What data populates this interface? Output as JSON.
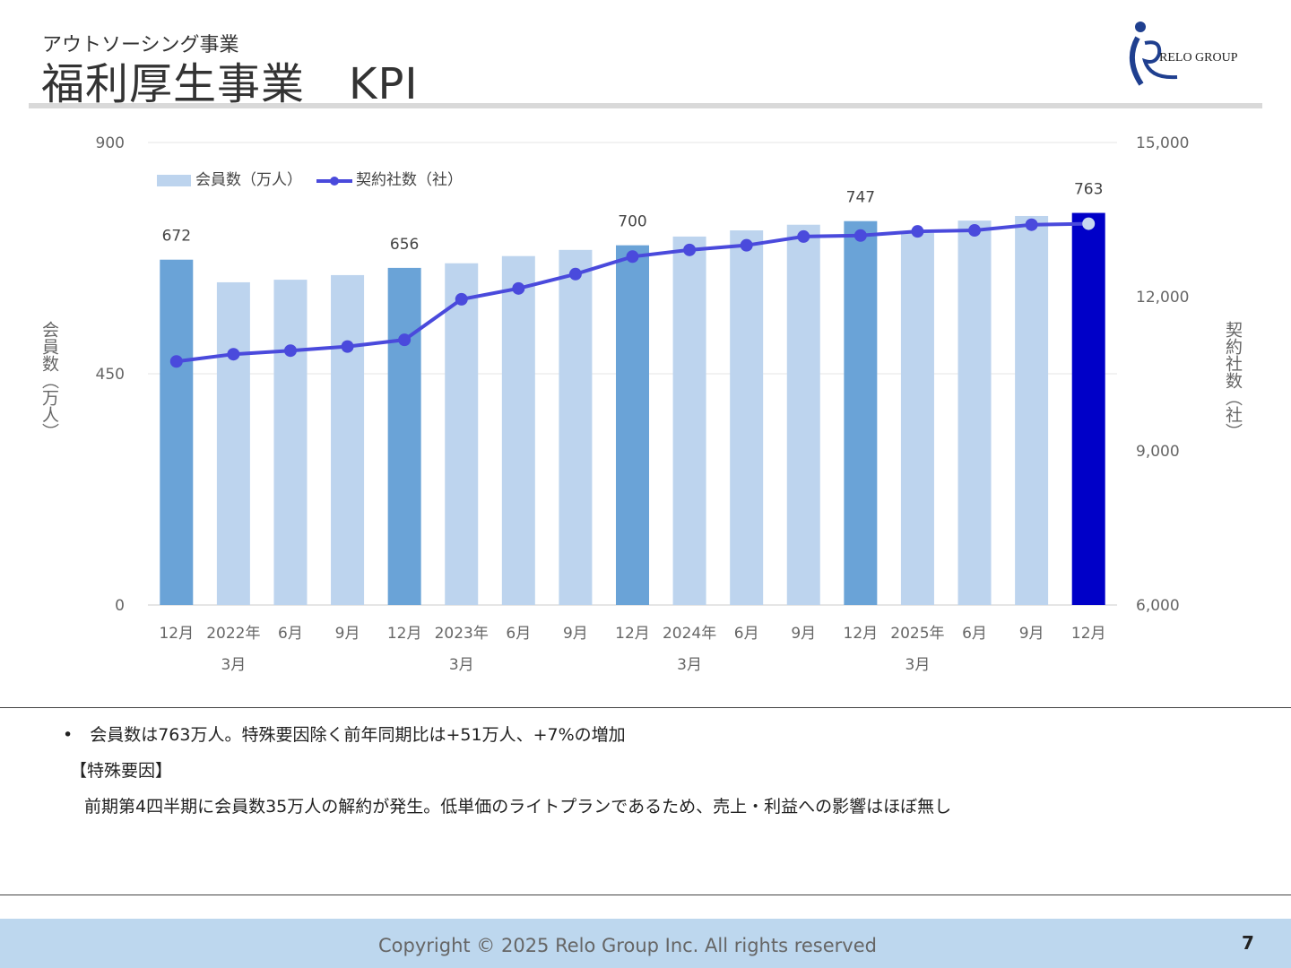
{
  "header": {
    "subtitle": "アウトソーシング事業",
    "title": "福利厚生事業　KPI",
    "logo_text": "RELO GROUP"
  },
  "chart_data": {
    "type": "bar+line",
    "categories": [
      "12月",
      "2022年\n3月",
      "6月",
      "9月",
      "12月",
      "2023年\n3月",
      "6月",
      "9月",
      "12月",
      "2024年\n3月",
      "6月",
      "9月",
      "12月",
      "2025年\n3月",
      "6月",
      "9月",
      "12月"
    ],
    "series": [
      {
        "name": "会員数（万人）",
        "type": "bar",
        "axis": "left",
        "values": [
          672,
          628,
          633,
          642,
          656,
          665,
          679,
          691,
          700,
          717,
          729,
          740,
          747,
          724,
          748,
          757,
          763
        ],
        "data_labels": {
          "0": "672",
          "4": "656",
          "8": "700",
          "12": "747",
          "16": "763"
        }
      },
      {
        "name": "契約社数（社）",
        "type": "line",
        "axis": "right",
        "values": [
          10740,
          10880,
          10950,
          11030,
          11160,
          11950,
          12160,
          12440,
          12780,
          12910,
          13000,
          13170,
          13190,
          13270,
          13290,
          13400,
          13420
        ]
      }
    ],
    "ylabel": "会員数（万人）",
    "y2label": "契約社数（社）",
    "ylim": [
      0,
      900
    ],
    "yticks": [
      "0",
      "450",
      "900"
    ],
    "y2lim": [
      6000,
      15000
    ],
    "y2ticks": [
      "6,000",
      "9,000",
      "12,000",
      "15,000"
    ],
    "legend": "top-left",
    "grid": true,
    "colors": {
      "bar": "#bdd4ee",
      "bar_q4": "#6aa3d7",
      "bar_latest": "#0000c8",
      "line": "#4a4adc",
      "latest_marker": "#c6d8f0"
    }
  },
  "notes": {
    "bullet": "会員数は763万人。特殊要因除く前年同期比は+51万人、+7%の増加",
    "heading": "【特殊要因】",
    "detail": "前期第4四半期に会員数35万人の解約が発生。低単価のライトプランであるため、売上・利益への影響はほぼ無し"
  },
  "footer": {
    "copyright": "Copyright © 2025 Relo Group Inc. All rights reserved",
    "page": "7"
  }
}
